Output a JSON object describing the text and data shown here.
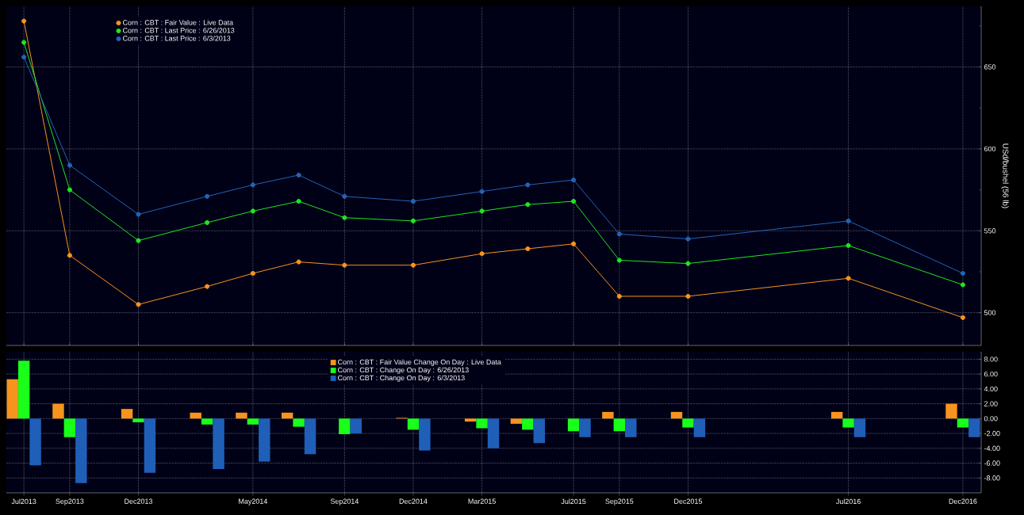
{
  "chart_data": [
    {
      "type": "line",
      "ylabel": "USd/bushel (56 lb)",
      "x": [
        "2013-07",
        "2013-09",
        "2013-12",
        "2014-03",
        "2014-05",
        "2014-07",
        "2014-09",
        "2014-12",
        "2015-03",
        "2015-05",
        "2015-07",
        "2015-09",
        "2015-12",
        "2016-07",
        "2016-12"
      ],
      "xlim": [
        "2013-06-08",
        "2016-12-25"
      ],
      "xticks": [
        {
          "value": "2013-07",
          "label": null
        },
        {
          "value": "2013-09",
          "label": null
        },
        {
          "value": "2013-12",
          "label": null
        },
        {
          "value": "2014-05",
          "label": null
        },
        {
          "value": "2014-09",
          "label": null
        },
        {
          "value": "2014-12",
          "label": null
        },
        {
          "value": "2015-03",
          "label": null
        },
        {
          "value": "2015-07",
          "label": null
        },
        {
          "value": "2015-09",
          "label": null
        },
        {
          "value": "2015-12",
          "label": null
        },
        {
          "value": "2016-07",
          "label": null
        },
        {
          "value": "2016-12",
          "label": null
        }
      ],
      "ylim": [
        480,
        687
      ],
      "yticks": [
        500,
        {
          "value": 525,
          "label": null
        },
        550,
        {
          "value": 575,
          "label": null
        },
        600,
        {
          "value": 625,
          "label": null
        },
        650,
        {
          "value": 675,
          "label": null
        }
      ],
      "tick_labels": "y",
      "grid": true,
      "legend": "top left",
      "marker": "circle",
      "line_style": "solid",
      "series": [
        {
          "name": "Corn : CBT : Fair Value : Live Data",
          "color": "#f7941d",
          "values": [
            678,
            535,
            505,
            516,
            524,
            531,
            529,
            529,
            536,
            539,
            542,
            510,
            510,
            521,
            497
          ]
        },
        {
          "name": "Corn : CBT : Last Price : 6/26/2013",
          "color": "#1fe61f",
          "values": [
            665,
            575,
            544,
            555,
            562,
            568,
            558,
            556,
            562,
            566,
            568,
            532,
            530,
            541,
            517
          ]
        },
        {
          "name": "Corn : CBT : Last Price : 6/3/2013",
          "color": "#2463b5",
          "values": [
            656,
            590,
            560,
            571,
            578,
            584,
            571,
            568,
            574,
            578,
            581,
            548,
            545,
            556,
            524
          ]
        }
      ]
    },
    {
      "type": "bar",
      "x": [
        "2013-07",
        "2013-09",
        "2013-12",
        "2014-03",
        "2014-05",
        "2014-07",
        "2014-09",
        "2014-12",
        "2015-03",
        "2015-05",
        "2015-07",
        "2015-09",
        "2015-12",
        "2016-07",
        "2016-12"
      ],
      "xlim": [
        "2013-06-08",
        "2016-12-25"
      ],
      "xticks": [
        {
          "value": "2013-07",
          "label": "Jul2013"
        },
        {
          "value": "2013-09",
          "label": "Sep2013"
        },
        {
          "value": "2013-12",
          "label": "Dec2013"
        },
        {
          "value": "2014-05",
          "label": "May2014"
        },
        {
          "value": "2014-09",
          "label": "Sep2014"
        },
        {
          "value": "2014-12",
          "label": "Dec2014"
        },
        {
          "value": "2015-03",
          "label": "Mar2015"
        },
        {
          "value": "2015-07",
          "label": "Jul2015"
        },
        {
          "value": "2015-09",
          "label": "Sep2015"
        },
        {
          "value": "2015-12",
          "label": "Dec2015"
        },
        {
          "value": "2016-07",
          "label": "Jul2016"
        },
        {
          "value": "2016-12",
          "label": "Dec2016"
        }
      ],
      "ylim": [
        -10,
        9
      ],
      "yticks": [
        {
          "value": 8,
          "label": "8.00"
        },
        {
          "value": 6,
          "label": "6.00"
        },
        {
          "value": 4,
          "label": "4.00"
        },
        {
          "value": 2,
          "label": "2.00"
        },
        {
          "value": 0,
          "label": "0.00"
        },
        {
          "value": -2,
          "label": "-2.00"
        },
        {
          "value": -4,
          "label": "-4.00"
        },
        {
          "value": -6,
          "label": "-6.00"
        },
        {
          "value": -8,
          "label": "-8.00"
        }
      ],
      "grid": true,
      "legend": "top",
      "series": [
        {
          "name": "Corn : CBT : Fair Value Change On Day : Live Data",
          "color": "#f7941d",
          "values": [
            5.3,
            2.0,
            1.3,
            0.8,
            0.8,
            0.8,
            0,
            0.1,
            -0.4,
            -0.7,
            0,
            0.9,
            0.9,
            0.9,
            2.0
          ]
        },
        {
          "name": "Corn : CBT : Change On Day : 6/26/2013",
          "color": "#1aff1a",
          "values": [
            7.8,
            -2.5,
            -0.5,
            -0.8,
            -0.8,
            -1.1,
            -2.1,
            -1.5,
            -1.3,
            -1.5,
            -1.7,
            -1.7,
            -1.2,
            -1.2,
            -1.2
          ]
        },
        {
          "name": "Corn : CBT : Change On Day : 6/3/2013",
          "color": "#1f5fb8",
          "values": [
            -6.3,
            -8.7,
            -7.3,
            -6.8,
            -5.8,
            -4.8,
            -2.0,
            -4.3,
            -4.0,
            -3.3,
            -2.5,
            -2.5,
            -2.5,
            -2.5,
            -2.5
          ]
        }
      ]
    }
  ]
}
